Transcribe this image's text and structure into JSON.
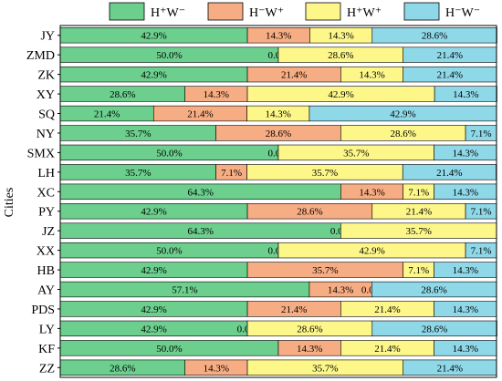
{
  "chart_data": {
    "type": "bar",
    "orientation": "horizontal",
    "stacked": "percent",
    "ylabel": "Cities",
    "xlim": [
      0,
      100
    ],
    "legend_position": "top",
    "categories": [
      "JY",
      "ZMD",
      "ZK",
      "XY",
      "SQ",
      "NY",
      "SMX",
      "LH",
      "XC",
      "PY",
      "JZ",
      "XX",
      "HB",
      "AY",
      "PDS",
      "LY",
      "KF",
      "ZZ"
    ],
    "series": [
      {
        "name": "H⁺W⁻",
        "color": "#6ccf8e",
        "values": [
          42.9,
          50.0,
          42.9,
          28.6,
          21.4,
          35.7,
          50.0,
          35.7,
          64.3,
          42.9,
          64.3,
          50.0,
          42.9,
          57.1,
          42.9,
          42.9,
          50.0,
          28.6
        ],
        "labels": [
          "42.9%",
          "50.0%",
          "42.9%",
          "28.6%",
          "21.4%",
          "35.7%",
          "50.0%",
          "35.7%",
          "64.3%",
          "42.9%",
          "64.3%",
          "50.0%",
          "42.9%",
          "57.1%",
          "42.9%",
          "42.9%",
          "50.0%",
          "28.6%"
        ]
      },
      {
        "name": "H⁻W⁺",
        "color": "#f7ad83",
        "values": [
          14.3,
          0.0,
          21.4,
          14.3,
          21.4,
          28.6,
          0.0,
          7.1,
          14.3,
          28.6,
          0.0,
          0.0,
          35.7,
          14.3,
          21.4,
          0.0,
          14.3,
          14.3
        ],
        "labels": [
          "14.3%",
          "0.0%",
          "21.4%",
          "14.3%",
          "21.4%",
          "28.6%",
          "0.0%",
          "7.1%",
          "14.3%",
          "28.6%",
          "0.0%",
          "0.0%",
          "35.7%",
          "14.3%",
          "21.4%",
          "0.0%",
          "14.3%",
          "14.3%"
        ]
      },
      {
        "name": "H⁺W⁺",
        "color": "#fdf78a",
        "values": [
          14.3,
          28.6,
          14.3,
          42.9,
          14.3,
          28.6,
          35.7,
          35.7,
          7.1,
          21.4,
          35.7,
          42.9,
          7.1,
          0.0,
          21.4,
          28.6,
          21.4,
          35.7
        ],
        "labels": [
          "14.3%",
          "28.6%",
          "14.3%",
          "42.9%",
          "14.3%",
          "28.6%",
          "35.7%",
          "35.7%",
          "7.1%",
          "21.4%",
          "35.7%",
          "42.9%",
          "7.1%",
          "0.0%",
          "21.4%",
          "28.6%",
          "21.4%",
          "35.7%"
        ]
      },
      {
        "name": "H⁻W⁻",
        "color": "#8fd8e8",
        "values": [
          28.6,
          21.4,
          21.4,
          14.3,
          42.9,
          7.1,
          14.3,
          21.4,
          14.3,
          7.1,
          0.0,
          7.1,
          14.3,
          28.6,
          14.3,
          28.6,
          14.3,
          21.4
        ],
        "labels": [
          "28.6%",
          "21.4%",
          "21.4%",
          "14.3%",
          "42.9%",
          "7.1%",
          "14.3%",
          "21.4%",
          "14.3%",
          "7.1%",
          "",
          "7.1%",
          "14.3%",
          "28.6%",
          "14.3%",
          "28.6%",
          "14.3%",
          "21.4%"
        ]
      }
    ]
  }
}
